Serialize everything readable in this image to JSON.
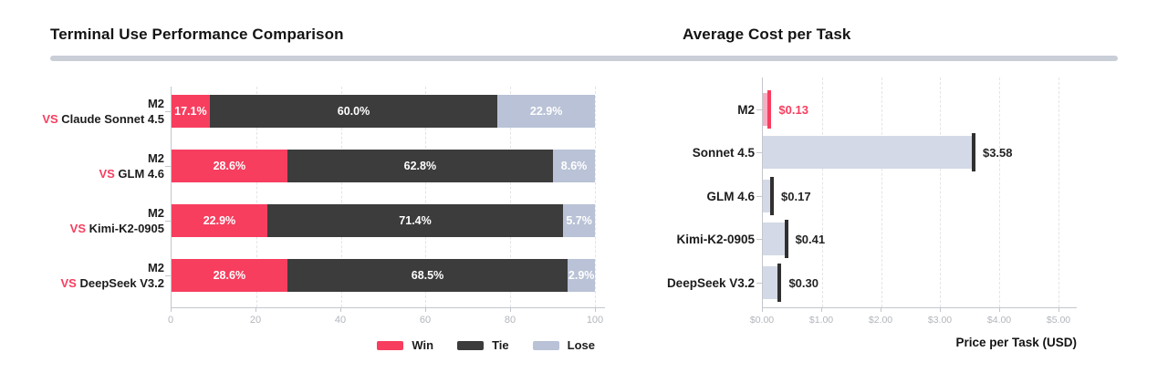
{
  "colors": {
    "win": "#F73E5F",
    "tie": "#3C3C3C",
    "lose": "#B9C2D6",
    "bar_fill": "#D3D9E6",
    "bar_cap": "#303030",
    "m2_fill": "#F8AEC2",
    "m2_cap": "#F73E5F",
    "divider": "#C9CED7",
    "axis": "#C3C6CC",
    "grid": "#E3E4E7",
    "tick_text": "#B2B6BC"
  },
  "left_chart": {
    "title": "Terminal Use Performance Comparison",
    "x_ticks": [
      {
        "label": "0",
        "pct": 0
      },
      {
        "label": "20",
        "pct": 20
      },
      {
        "label": "40",
        "pct": 40
      },
      {
        "label": "60",
        "pct": 60
      },
      {
        "label": "80",
        "pct": 80
      },
      {
        "label": "100",
        "pct": 100
      }
    ],
    "rows": [
      {
        "line1": "M2",
        "vs": "VS",
        "opponent": "Claude Sonnet 4.5",
        "segments": [
          {
            "label": "17.1%",
            "value": 17.1,
            "width": 9.0
          },
          {
            "label": "60.0%",
            "value": 60.0,
            "width": 68.0
          },
          {
            "label": "22.9%",
            "value": 22.9,
            "width": 23.0
          }
        ]
      },
      {
        "line1": "M2",
        "vs": "VS",
        "opponent": "GLM 4.6",
        "segments": [
          {
            "label": "28.6%",
            "value": 28.6,
            "width": 27.3
          },
          {
            "label": "62.8%",
            "value": 62.8,
            "width": 62.8
          },
          {
            "label": "8.6%",
            "value": 8.6,
            "width": 9.9
          }
        ]
      },
      {
        "line1": "M2",
        "vs": "VS",
        "opponent": "Kimi-K2-0905",
        "segments": [
          {
            "label": "22.9%",
            "value": 22.9,
            "width": 22.6
          },
          {
            "label": "71.4%",
            "value": 71.4,
            "width": 69.9
          },
          {
            "label": "5.7%",
            "value": 5.7,
            "width": 7.5
          }
        ]
      },
      {
        "line1": "M2",
        "vs": "VS",
        "opponent": "DeepSeek V3.2",
        "segments": [
          {
            "label": "28.6%",
            "value": 28.6,
            "width": 27.3
          },
          {
            "label": "68.5%",
            "value": 68.5,
            "width": 66.3
          },
          {
            "label": "2.9%",
            "value": 2.9,
            "width": 6.4
          }
        ]
      }
    ],
    "legend": [
      {
        "label": "Win"
      },
      {
        "label": "Tie"
      },
      {
        "label": "Lose"
      }
    ]
  },
  "right_chart": {
    "title": "Average Cost per Task",
    "axis_caption": "Price per Task (USD)",
    "x_ticks": [
      {
        "label": "$0.00",
        "pct": 0
      },
      {
        "label": "$1.00",
        "pct": 20
      },
      {
        "label": "$2.00",
        "pct": 40
      },
      {
        "label": "$3.00",
        "pct": 60
      },
      {
        "label": "$4.00",
        "pct": 80
      },
      {
        "label": "$5.00",
        "pct": 100
      }
    ],
    "rows": [
      {
        "label": "M2",
        "value_label": "$0.13",
        "value": 0.13,
        "width": 2.6
      },
      {
        "label": "Sonnet 4.5",
        "value_label": "$3.58",
        "value": 3.58,
        "width": 71.6
      },
      {
        "label": "GLM 4.6",
        "value_label": "$0.17",
        "value": 0.17,
        "width": 3.4
      },
      {
        "label": "Kimi-K2-0905",
        "value_label": "$0.41",
        "value": 0.41,
        "width": 8.2
      },
      {
        "label": "DeepSeek V3.2",
        "value_label": "$0.30",
        "value": 0.3,
        "width": 6.0
      }
    ]
  },
  "chart_data": [
    {
      "type": "bar",
      "subtype": "horizontal-stacked",
      "title": "Terminal Use Performance Comparison",
      "categories": [
        "M2 VS Claude Sonnet 4.5",
        "M2 VS GLM 4.6",
        "M2 VS Kimi-K2-0905",
        "M2 VS DeepSeek V3.2"
      ],
      "series": [
        {
          "name": "Win",
          "values": [
            17.1,
            28.6,
            22.9,
            28.6
          ],
          "color": "#F73E5F"
        },
        {
          "name": "Tie",
          "values": [
            60.0,
            62.8,
            71.4,
            68.5
          ],
          "color": "#3C3C3C"
        },
        {
          "name": "Lose",
          "values": [
            22.9,
            8.6,
            5.7,
            2.9
          ],
          "color": "#B9C2D6"
        }
      ],
      "xlabel": "",
      "ylabel": "",
      "xlim": [
        0,
        100
      ],
      "x_tick_labels": [
        "0",
        "20",
        "40",
        "60",
        "80",
        "100"
      ],
      "grid": "vertical-dashed",
      "legend_position": "bottom-right",
      "value_label_format": "percent-inside-white"
    },
    {
      "type": "bar",
      "subtype": "horizontal",
      "title": "Average Cost per Task",
      "categories": [
        "M2",
        "Sonnet 4.5",
        "GLM 4.6",
        "Kimi-K2-0905",
        "DeepSeek V3.2"
      ],
      "values": [
        0.13,
        3.58,
        0.17,
        0.41,
        0.3
      ],
      "value_labels": [
        "$0.13",
        "$3.58",
        "$0.17",
        "$0.41",
        "$0.30"
      ],
      "highlight_category": "M2",
      "xlabel": "Price per Task (USD)",
      "ylabel": "",
      "xlim": [
        0,
        5
      ],
      "x_tick_labels": [
        "$0.00",
        "$1.00",
        "$2.00",
        "$3.00",
        "$4.00",
        "$5.00"
      ],
      "grid": "vertical-dashed"
    }
  ]
}
